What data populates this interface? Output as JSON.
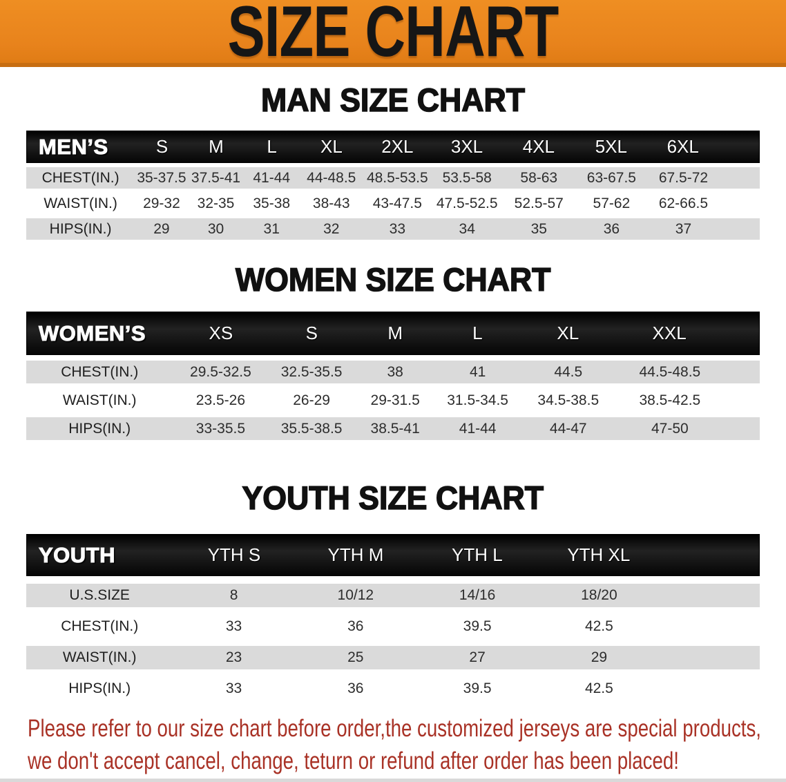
{
  "banner": {
    "title": "SIZE CHART",
    "bg_color": "#E8831C",
    "text_color": "#161616"
  },
  "sections": [
    {
      "heading": "MAN SIZE CHART",
      "table": {
        "header_label": "MEN’S",
        "columns": [
          "S",
          "M",
          "L",
          "XL",
          "2XL",
          "3XL",
          "4XL",
          "5XL",
          "6XL"
        ],
        "rows": [
          {
            "label": "CHEST(IN.)",
            "values": [
              "35-37.5",
              "37.5-41",
              "41-44",
              "44-48.5",
              "48.5-53.5",
              "53.5-58",
              "58-63",
              "63-67.5",
              "67.5-72"
            ]
          },
          {
            "label": "WAIST(IN.)",
            "values": [
              "29-32",
              "32-35",
              "35-38",
              "38-43",
              "43-47.5",
              "47.5-52.5",
              "52.5-57",
              "57-62",
              "62-66.5"
            ]
          },
          {
            "label": "HIPS(IN.)",
            "values": [
              "29",
              "30",
              "31",
              "32",
              "33",
              "34",
              "35",
              "36",
              "37"
            ]
          }
        ]
      }
    },
    {
      "heading": "WOMEN SIZE CHART",
      "table": {
        "header_label": "WOMEN’S",
        "columns": [
          "XS",
          "S",
          "M",
          "L",
          "XL",
          "XXL"
        ],
        "rows": [
          {
            "label": "CHEST(IN.)",
            "values": [
              "29.5-32.5",
              "32.5-35.5",
              "38",
              "41",
              "44.5",
              "44.5-48.5"
            ]
          },
          {
            "label": "WAIST(IN.)",
            "values": [
              "23.5-26",
              "26-29",
              "29-31.5",
              "31.5-34.5",
              "34.5-38.5",
              "38.5-42.5"
            ]
          },
          {
            "label": "HIPS(IN.)",
            "values": [
              "33-35.5",
              "35.5-38.5",
              "38.5-41",
              "41-44",
              "44-47",
              "47-50"
            ]
          }
        ]
      }
    },
    {
      "heading": "YOUTH SIZE CHART",
      "table": {
        "header_label": "YOUTH",
        "columns": [
          "YTH S",
          "YTH M",
          "YTH L",
          "YTH XL"
        ],
        "rows": [
          {
            "label": "U.S.SIZE",
            "values": [
              "8",
              "10/12",
              "14/16",
              "18/20"
            ]
          },
          {
            "label": "CHEST(IN.)",
            "values": [
              "33",
              "36",
              "39.5",
              "42.5"
            ]
          },
          {
            "label": "WAIST(IN.)",
            "values": [
              "23",
              "25",
              "27",
              "29"
            ]
          },
          {
            "label": "HIPS(IN.)",
            "values": [
              "33",
              "36",
              "39.5",
              "42.5"
            ]
          }
        ]
      }
    }
  ],
  "disclaimer": {
    "line1": "Please refer to our size chart before order,the customized jerseys are special products,",
    "line2": "we don't accept cancel, change, teturn or refund after order has been placed!",
    "color": "#A93226"
  }
}
